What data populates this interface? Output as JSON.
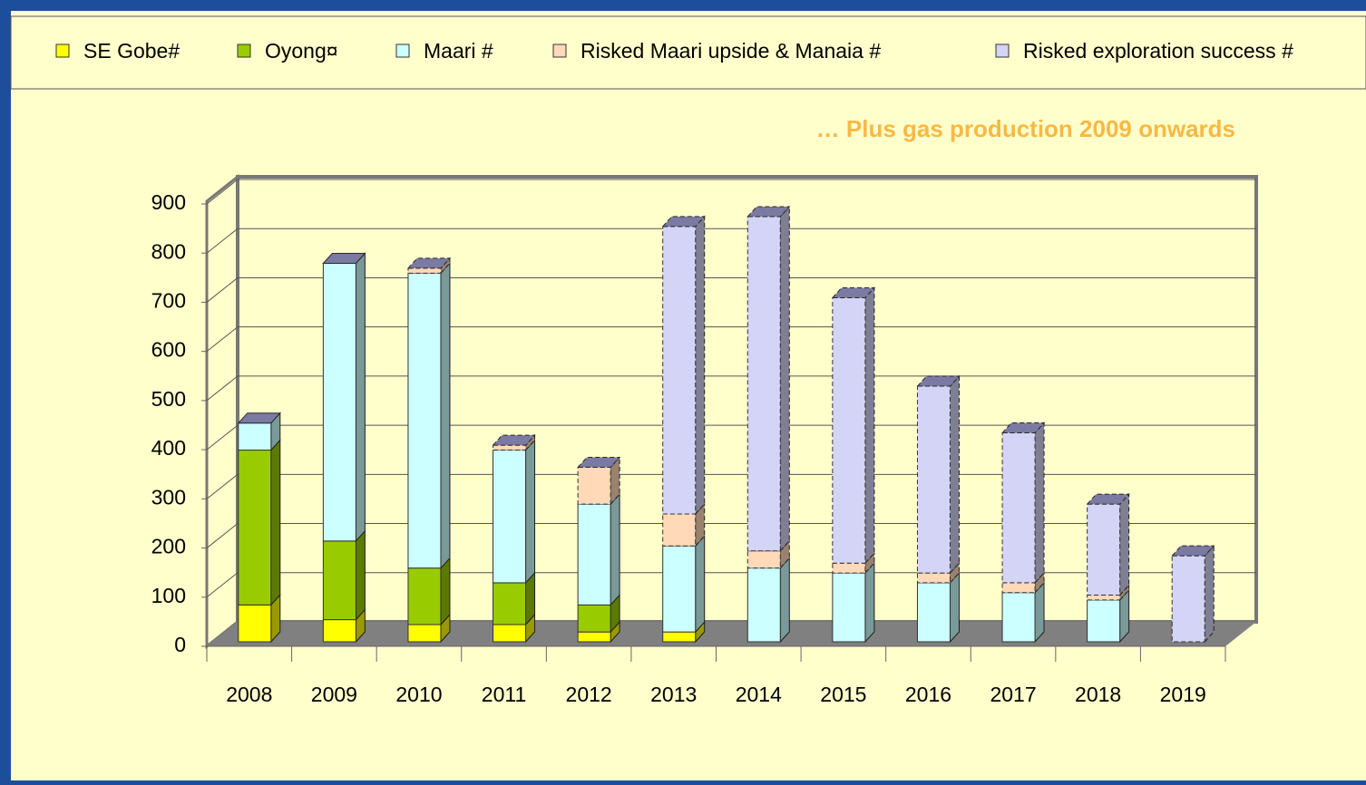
{
  "chart_data": {
    "type": "bar3d_stacked",
    "annotation": "… Plus gas production 2009 onwards",
    "categories": [
      "2008",
      "2009",
      "2010",
      "2011",
      "2012",
      "2013",
      "2014",
      "2015",
      "2016",
      "2017",
      "2018",
      "2019"
    ],
    "series": [
      {
        "name": "SE Gobe#",
        "color": "#ffff00",
        "values": [
          75,
          45,
          35,
          35,
          20,
          20,
          null,
          null,
          null,
          null,
          null,
          null
        ]
      },
      {
        "name": "Oyong¤",
        "color": "#99cc00",
        "values": [
          315,
          160,
          115,
          85,
          55,
          null,
          null,
          null,
          null,
          null,
          null,
          null
        ]
      },
      {
        "name": "Maari #",
        "color": "#ccffff",
        "values": [
          55,
          565,
          600,
          270,
          205,
          175,
          150,
          140,
          120,
          100,
          85,
          null
        ]
      },
      {
        "name": "Risked Maari upside & Manaia #",
        "color": "#ffd9b8",
        "values": [
          null,
          null,
          10,
          10,
          75,
          65,
          35,
          20,
          20,
          20,
          10,
          null
        ]
      },
      {
        "name": "Risked exploration success #",
        "color": "#d4d4f7",
        "values": [
          null,
          null,
          null,
          null,
          null,
          585,
          680,
          540,
          380,
          305,
          185,
          175
        ]
      }
    ],
    "ylim": [
      0,
      900
    ],
    "yticks": [
      0,
      100,
      200,
      300,
      400,
      500,
      600,
      700,
      800,
      900
    ],
    "grid": true
  }
}
